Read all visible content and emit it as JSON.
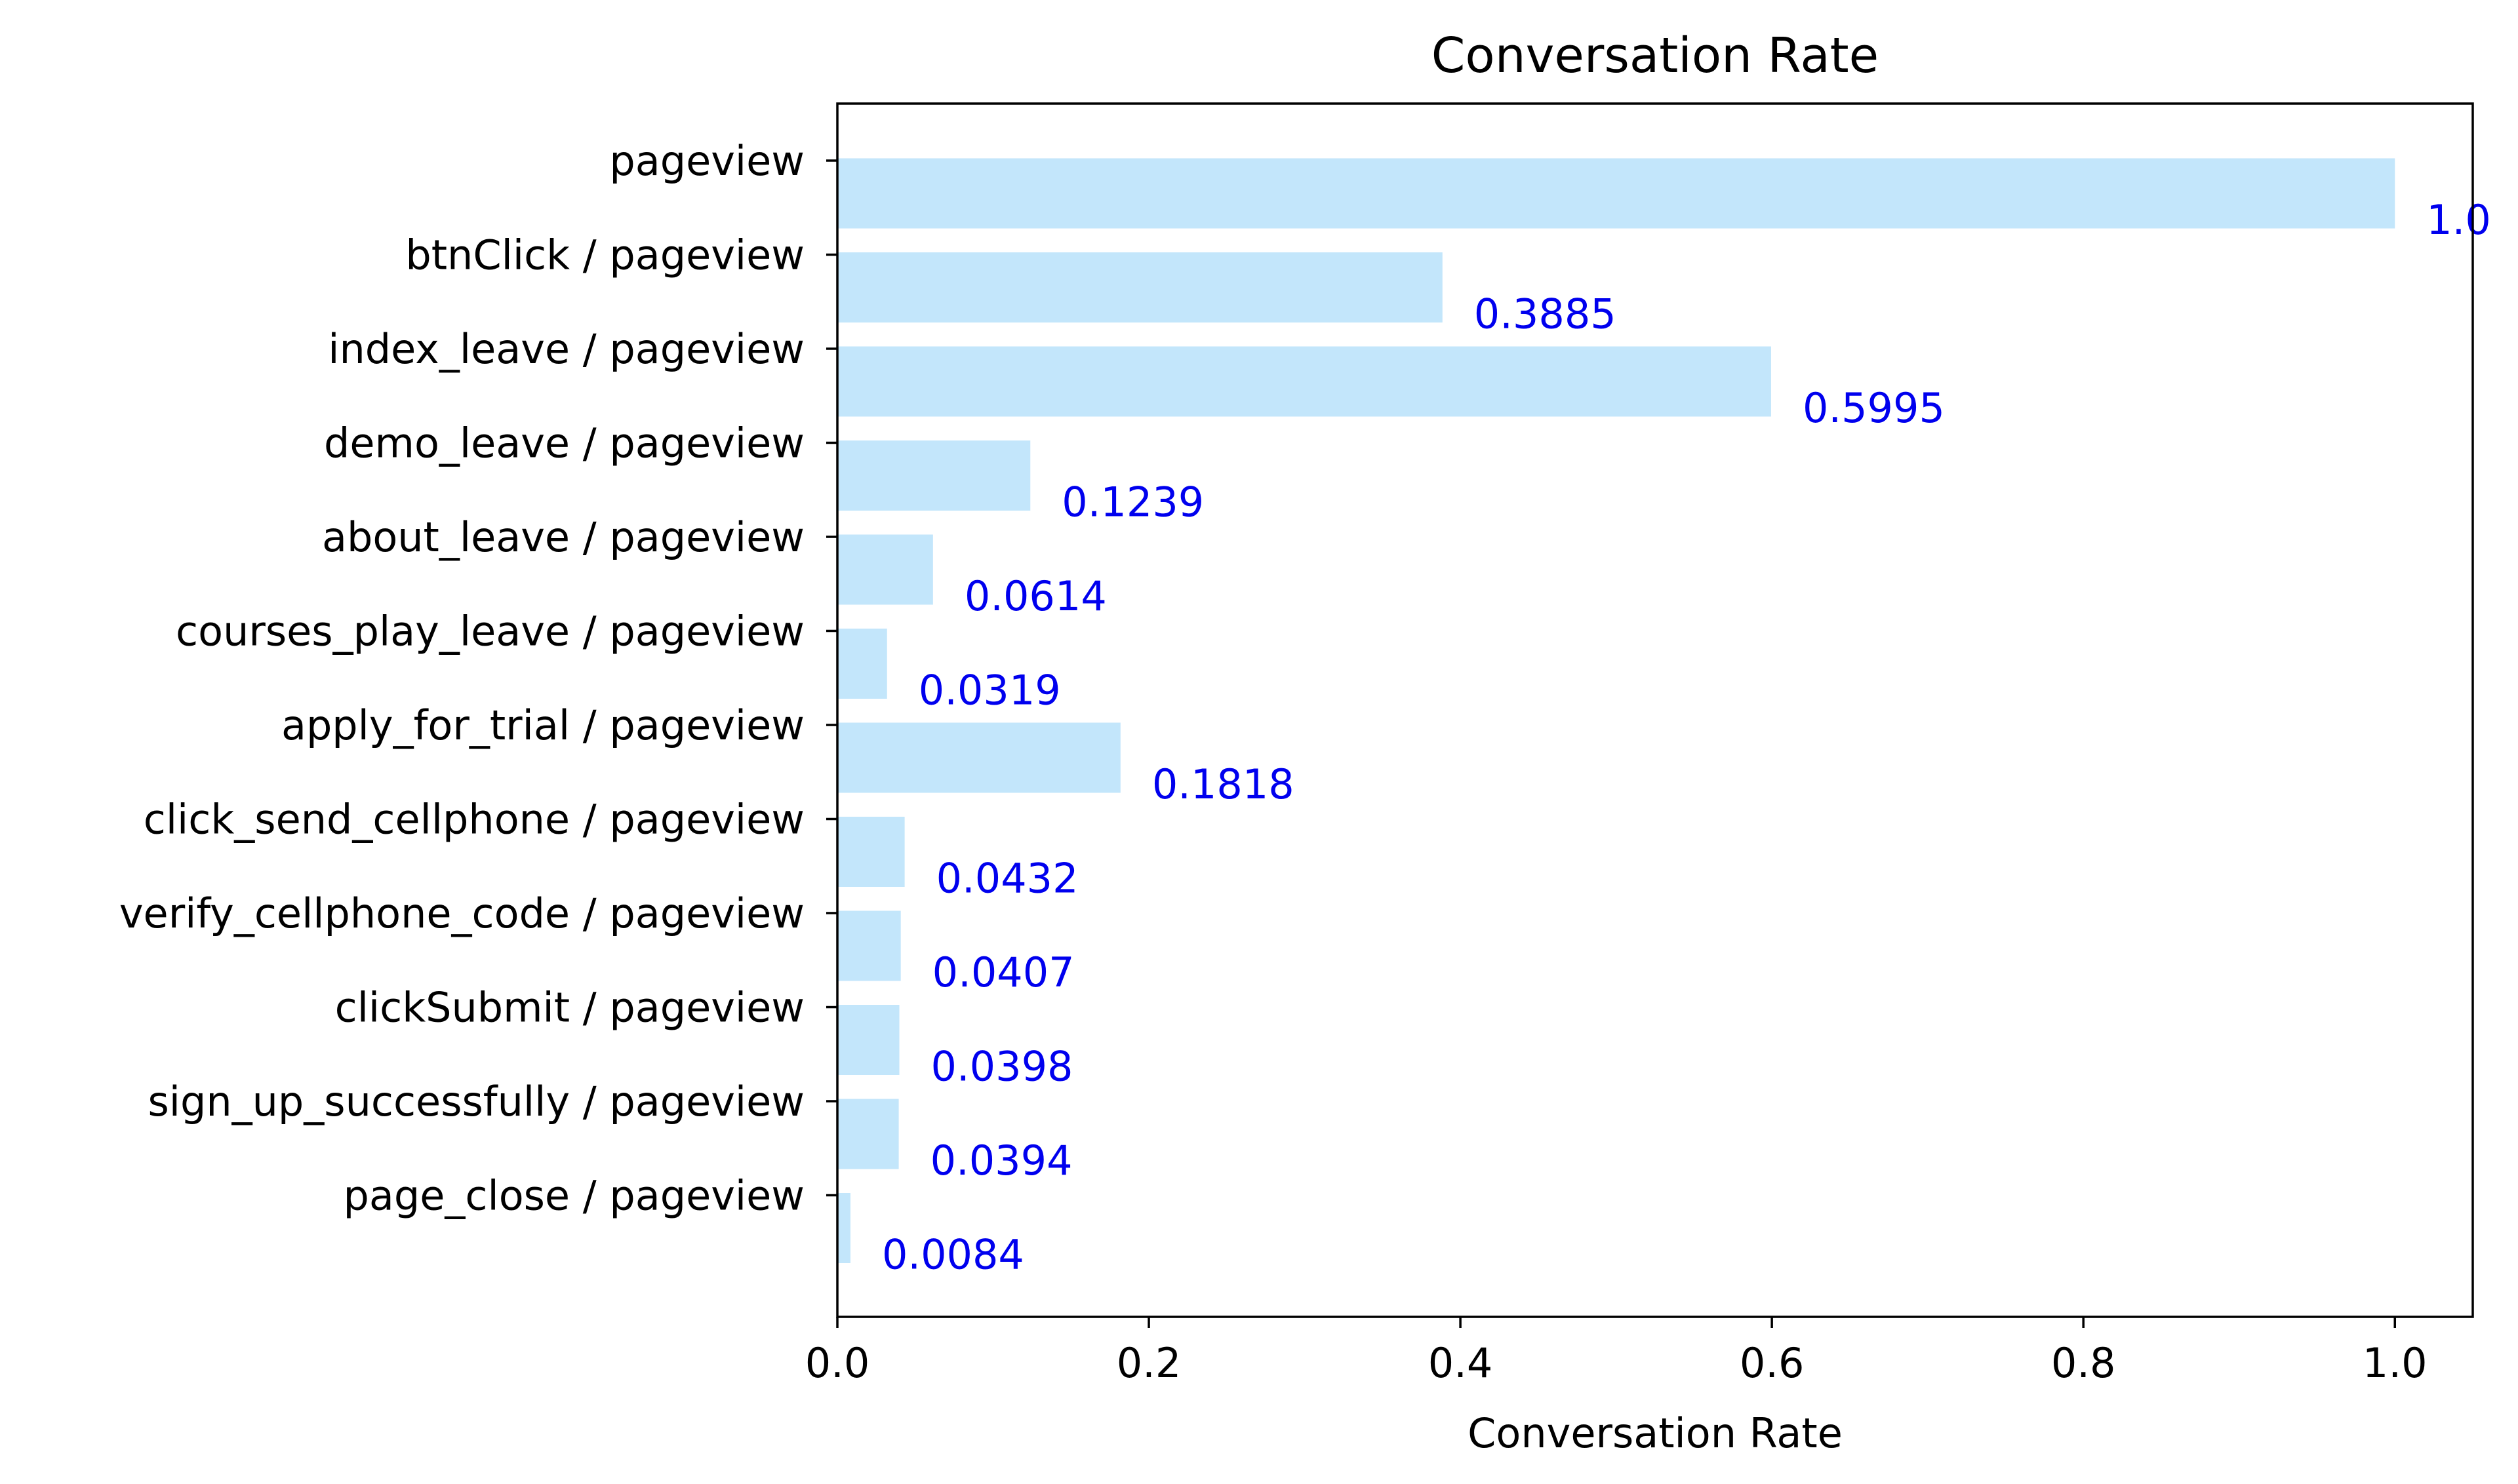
{
  "chart_data": {
    "type": "bar",
    "orientation": "horizontal",
    "title": "Conversation Rate",
    "xlabel": "Conversation Rate",
    "ylabel": "",
    "xlim": [
      0,
      1.05
    ],
    "xticks": [
      0.0,
      0.2,
      0.4,
      0.6,
      0.8,
      1.0
    ],
    "xtick_labels": [
      "0.0",
      "0.2",
      "0.4",
      "0.6",
      "0.8",
      "1.0"
    ],
    "grid": false,
    "bar_color": "#c3e6fb",
    "label_color": "#0000ee",
    "categories": [
      "pageview",
      "btnClick / pageview",
      "index_leave / pageview",
      "demo_leave / pageview",
      "about_leave / pageview",
      "courses_play_leave / pageview",
      "apply_for_trial / pageview",
      "click_send_cellphone / pageview",
      "verify_cellphone_code / pageview",
      "clickSubmit / pageview",
      "sign_up_successfully / pageview",
      "page_close / pageview"
    ],
    "values": [
      1.0,
      0.3885,
      0.5995,
      0.1239,
      0.0614,
      0.0319,
      0.1818,
      0.0432,
      0.0407,
      0.0398,
      0.0394,
      0.0084
    ],
    "data_labels": [
      "1.0",
      "0.3885",
      "0.5995",
      "0.1239",
      "0.0614",
      "0.0319",
      "0.1818",
      "0.0432",
      "0.0407",
      "0.0398",
      "0.0394",
      "0.0084"
    ]
  }
}
